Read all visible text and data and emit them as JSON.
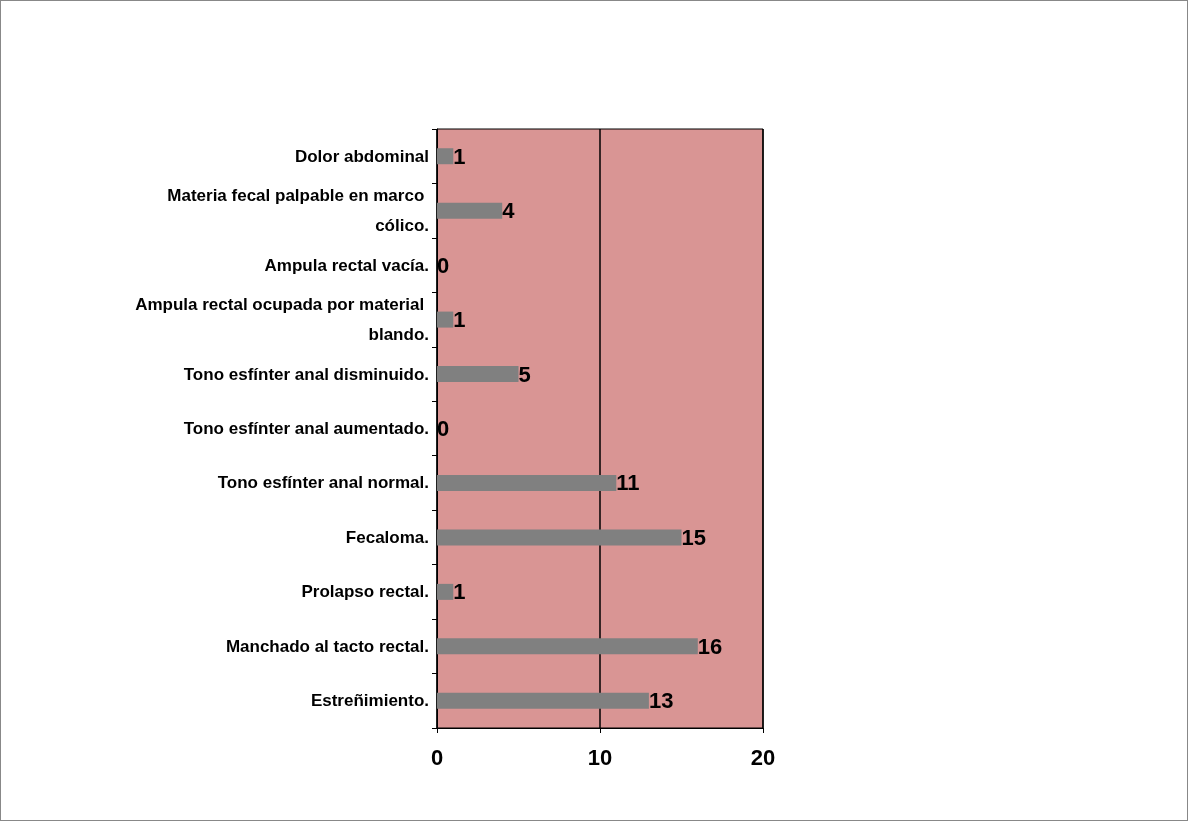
{
  "chart_data": {
    "type": "bar",
    "orientation": "horizontal",
    "categories": [
      "Dolor abdominal",
      "Materia fecal palpable en marco cólico.",
      "Ampula rectal vacía.",
      "Ampula rectal ocupada por material blando.",
      "Tono esfínter anal disminuido.",
      "Tono esfínter anal aumentado.",
      "Tono esfínter anal normal.",
      "Fecaloma.",
      "Prolapso rectal.",
      "Manchado al tacto rectal.",
      "Estreñimiento."
    ],
    "values": [
      1,
      4,
      0,
      1,
      5,
      0,
      11,
      15,
      1,
      16,
      13
    ],
    "color": "#808080",
    "xlim": [
      0,
      20
    ],
    "xticks": [
      0,
      10,
      20
    ],
    "grid": "x",
    "data_labels": true
  }
}
